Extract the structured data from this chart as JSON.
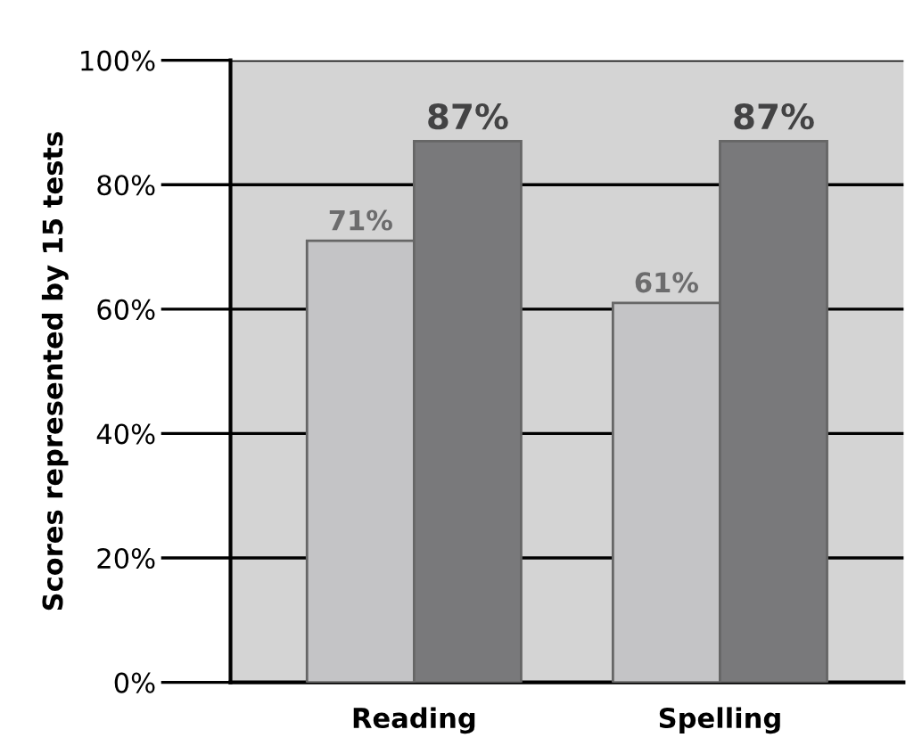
{
  "chart_data": {
    "type": "bar",
    "ylabel": "Scores represented by 15 tests",
    "categories": [
      "Reading",
      "Spelling"
    ],
    "series": [
      {
        "color": "#c4c4c6",
        "values": [
          71,
          61
        ],
        "value_labels": [
          "71%",
          "61%"
        ]
      },
      {
        "color": "#79797b",
        "values": [
          87,
          87
        ],
        "value_labels": [
          "87%",
          "87%"
        ]
      }
    ],
    "ylim": [
      0,
      100
    ],
    "yticks": [
      {
        "value": 0,
        "label": "0%"
      },
      {
        "value": 20,
        "label": "20%"
      },
      {
        "value": 40,
        "label": "40%"
      },
      {
        "value": 60,
        "label": "60%"
      },
      {
        "value": 80,
        "label": "80%"
      },
      {
        "value": 100,
        "label": "100%"
      }
    ],
    "grid": "y"
  }
}
